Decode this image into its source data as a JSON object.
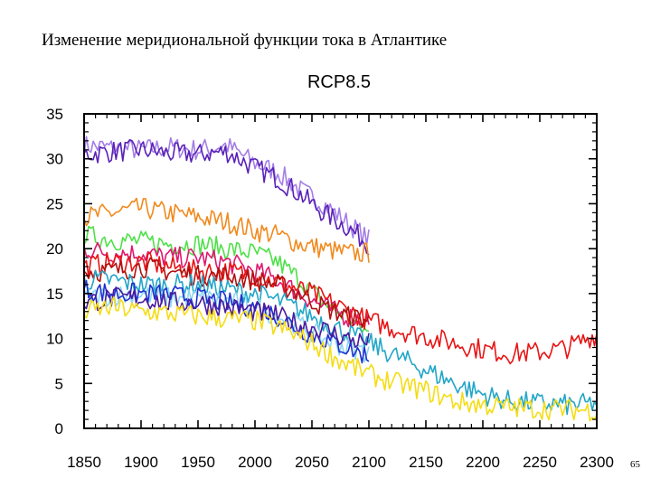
{
  "slide": {
    "title": "Изменение меридиональной функции тока в Атлантике",
    "page_number": "65"
  },
  "chart_data": {
    "type": "line",
    "title": "RCP8.5",
    "xlabel": "",
    "ylabel": "",
    "xlim": [
      1850,
      2300
    ],
    "ylim": [
      0,
      35
    ],
    "x_ticks": [
      1850,
      1900,
      1950,
      2000,
      2050,
      2100,
      2150,
      2200,
      2250,
      2300
    ],
    "y_ticks": [
      0,
      5,
      10,
      15,
      20,
      25,
      30,
      35
    ],
    "grid": false,
    "legend": "none",
    "series": [
      {
        "color": "#a47ee6",
        "x": [
          1850,
          1875,
          1900,
          1925,
          1950,
          1975,
          2000,
          2020,
          2040,
          2060,
          2080,
          2100
        ],
        "y": [
          31.5,
          31.2,
          31.0,
          31.3,
          31.0,
          31.5,
          29.5,
          28.5,
          26.5,
          25.0,
          23.0,
          21.0
        ]
      },
      {
        "color": "#5a22b8",
        "x": [
          1850,
          1875,
          1900,
          1925,
          1950,
          1975,
          2000,
          2020,
          2040,
          2060,
          2080,
          2100
        ],
        "y": [
          30.5,
          30.8,
          31.0,
          30.6,
          30.5,
          30.8,
          29.0,
          27.8,
          26.0,
          24.0,
          22.5,
          20.5
        ]
      },
      {
        "color": "#f08a1e",
        "x": [
          1850,
          1875,
          1900,
          1925,
          1950,
          1975,
          2000,
          2020,
          2040,
          2060,
          2080,
          2100
        ],
        "y": [
          23.5,
          24.0,
          24.5,
          24.0,
          23.5,
          23.0,
          22.0,
          21.5,
          20.5,
          20.0,
          19.5,
          19.5
        ]
      },
      {
        "color": "#4fe04a",
        "x": [
          1850,
          1875,
          1900,
          1925,
          1950,
          1975,
          2000,
          2020,
          2040,
          2060,
          2080,
          2100
        ],
        "y": [
          21.5,
          21.0,
          20.8,
          20.5,
          20.5,
          20.0,
          19.5,
          18.5,
          16.5,
          14.0,
          12.5,
          10.5
        ]
      },
      {
        "color": "#e0186e",
        "x": [
          1850,
          1875,
          1900,
          1925,
          1950,
          1975,
          2000,
          2020,
          2040,
          2060,
          2080,
          2100
        ],
        "y": [
          20.0,
          19.5,
          19.5,
          19.0,
          19.0,
          18.5,
          17.5,
          16.5,
          15.0,
          13.5,
          12.5,
          12.0
        ]
      },
      {
        "color": "#e81414",
        "x": [
          1850,
          1875,
          1900,
          1925,
          1950,
          1975,
          2000,
          2025,
          2050,
          2075,
          2100,
          2125,
          2150,
          2175,
          2200,
          2225,
          2250,
          2275,
          2300
        ],
        "y": [
          18.0,
          18.5,
          18.5,
          18.0,
          17.5,
          17.5,
          17.0,
          16.0,
          15.0,
          13.5,
          12.0,
          11.0,
          10.2,
          9.5,
          8.8,
          8.3,
          8.5,
          9.0,
          10.5
        ]
      },
      {
        "color": "#b01010",
        "x": [
          1850,
          1875,
          1900,
          1925,
          1950,
          1975,
          2000,
          2020,
          2040,
          2060,
          2080,
          2100
        ],
        "y": [
          17.5,
          17.5,
          18.0,
          17.5,
          17.0,
          17.0,
          16.5,
          16.0,
          15.0,
          13.5,
          12.5,
          12.0
        ]
      },
      {
        "color": "#22a6c8",
        "x": [
          1850,
          1875,
          1900,
          1925,
          1950,
          1975,
          2000,
          2025,
          2050,
          2075,
          2100,
          2125,
          2150,
          2175,
          2200,
          2225,
          2250,
          2275,
          2300
        ],
        "y": [
          16.5,
          16.5,
          16.0,
          16.0,
          16.0,
          15.5,
          15.0,
          14.0,
          12.5,
          11.0,
          9.5,
          8.0,
          6.5,
          5.0,
          3.8,
          3.0,
          2.8,
          2.6,
          2.8
        ]
      },
      {
        "color": "#8fd8f0",
        "x": [
          1850,
          1875,
          1900,
          1925,
          1950,
          1975,
          2000,
          2020,
          2040,
          2060,
          2080,
          2100
        ],
        "y": [
          14.5,
          14.8,
          15.0,
          14.5,
          14.5,
          14.2,
          13.5,
          12.5,
          11.5,
          10.0,
          9.0,
          8.5
        ]
      },
      {
        "color": "#2030d0",
        "x": [
          1850,
          1875,
          1900,
          1925,
          1950,
          1975,
          2000,
          2020,
          2040,
          2060,
          2080,
          2100
        ],
        "y": [
          15.5,
          15.0,
          15.0,
          14.8,
          14.5,
          14.0,
          13.5,
          12.5,
          11.0,
          10.0,
          9.0,
          8.0
        ]
      },
      {
        "color": "#4a1a9c",
        "x": [
          1850,
          1875,
          1900,
          1925,
          1950,
          1975,
          2000,
          2020,
          2040,
          2060,
          2080,
          2100
        ],
        "y": [
          14.0,
          14.5,
          14.5,
          14.0,
          14.0,
          13.5,
          13.0,
          12.5,
          11.5,
          11.0,
          10.0,
          9.5
        ]
      },
      {
        "color": "#f5dc14",
        "x": [
          1850,
          1875,
          1900,
          1925,
          1950,
          1975,
          2000,
          2025,
          2050,
          2075,
          2100,
          2125,
          2150,
          2175,
          2200,
          2225,
          2250,
          2275,
          2300
        ],
        "y": [
          13.0,
          13.5,
          13.0,
          12.8,
          12.5,
          12.2,
          12.0,
          11.0,
          9.5,
          7.5,
          6.0,
          5.0,
          4.2,
          3.0,
          2.6,
          2.3,
          2.2,
          2.1,
          2.0
        ]
      }
    ]
  }
}
